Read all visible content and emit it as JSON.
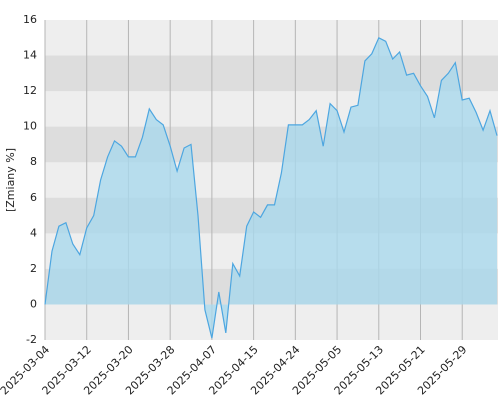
{
  "chart_data": {
    "type": "area",
    "y_label": "[Zmiany %]",
    "categories": [
      "2025-03-04",
      null,
      null,
      null,
      null,
      null,
      "2025-03-12",
      null,
      null,
      null,
      null,
      null,
      "2025-03-20",
      null,
      null,
      null,
      null,
      null,
      "2025-03-28",
      null,
      null,
      null,
      null,
      null,
      "2025-04-07",
      null,
      null,
      null,
      null,
      null,
      "2025-04-15",
      null,
      null,
      null,
      null,
      null,
      "2025-04-24",
      null,
      null,
      null,
      null,
      null,
      "2025-05-05",
      null,
      null,
      null,
      null,
      null,
      "2025-05-13",
      null,
      null,
      null,
      null,
      null,
      "2025-05-21",
      null,
      null,
      null,
      null,
      null,
      "2025-05-29",
      null,
      null,
      null,
      null,
      null
    ],
    "values": [
      0,
      3.0,
      4.4,
      4.6,
      3.4,
      2.8,
      4.3,
      5.0,
      7.0,
      8.3,
      9.2,
      8.9,
      8.3,
      8.3,
      9.4,
      11.0,
      10.4,
      10.1,
      8.9,
      7.5,
      8.8,
      9.0,
      5.0,
      -0.3,
      -1.9,
      0.7,
      -1.6,
      2.3,
      1.6,
      4.4,
      5.2,
      4.9,
      5.6,
      5.6,
      7.4,
      10.1,
      10.1,
      10.1,
      10.4,
      10.9,
      8.9,
      11.3,
      10.9,
      9.7,
      11.1,
      11.2,
      13.7,
      14.1,
      15.0,
      14.8,
      13.8,
      14.2,
      12.9,
      13.0,
      12.3,
      11.7,
      10.5,
      12.6,
      13.0,
      13.6,
      11.5,
      11.6,
      10.8,
      9.8,
      10.9,
      9.5
    ],
    "color": "#4da6e0",
    "fill_color": "#a9d8ec",
    "ylim": [
      -2,
      16
    ],
    "yticks": [
      -2,
      0,
      2,
      4,
      6,
      8,
      10,
      12,
      14,
      16
    ],
    "grid": true
  }
}
